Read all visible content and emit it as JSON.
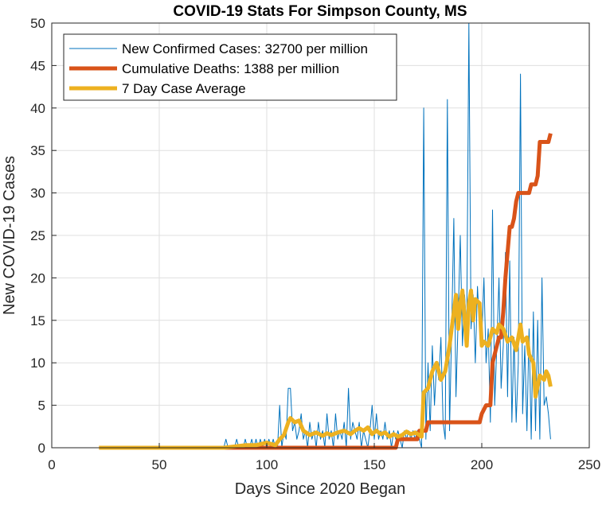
{
  "chart_data": {
    "type": "line",
    "title": "COVID-19 Stats For Simpson County, MS",
    "xlabel": "Days Since 2020 Began",
    "ylabel": "New COVID-19 Cases",
    "xlim": [
      0,
      250
    ],
    "ylim": [
      0,
      50
    ],
    "xticks": [
      0,
      50,
      100,
      150,
      200,
      250
    ],
    "yticks": [
      0,
      5,
      10,
      15,
      20,
      25,
      30,
      35,
      40,
      45,
      50
    ],
    "grid": true,
    "legend_position": "top-left",
    "series": [
      {
        "name": "New Confirmed Cases: 32700 per million",
        "color": "#0072BD",
        "line_width": "thin",
        "points": [
          [
            22,
            0
          ],
          [
            80,
            0
          ],
          [
            81,
            1
          ],
          [
            82,
            0
          ],
          [
            85,
            0
          ],
          [
            86,
            1
          ],
          [
            87,
            0
          ],
          [
            89,
            0
          ],
          [
            90,
            1
          ],
          [
            91,
            0
          ],
          [
            92,
            0
          ],
          [
            93,
            1
          ],
          [
            94,
            0
          ],
          [
            95,
            1
          ],
          [
            96,
            0
          ],
          [
            97,
            1
          ],
          [
            98,
            0
          ],
          [
            99,
            1
          ],
          [
            100,
            0
          ],
          [
            101,
            1
          ],
          [
            102,
            0
          ],
          [
            103,
            1
          ],
          [
            104,
            0
          ],
          [
            105,
            0
          ],
          [
            106,
            5
          ],
          [
            107,
            0
          ],
          [
            108,
            2
          ],
          [
            109,
            1
          ],
          [
            110,
            7
          ],
          [
            111,
            7
          ],
          [
            112,
            2
          ],
          [
            113,
            3
          ],
          [
            114,
            1
          ],
          [
            115,
            2
          ],
          [
            116,
            4
          ],
          [
            117,
            1
          ],
          [
            118,
            2
          ],
          [
            119,
            0
          ],
          [
            120,
            3
          ],
          [
            121,
            1
          ],
          [
            122,
            2
          ],
          [
            123,
            0
          ],
          [
            124,
            3
          ],
          [
            125,
            1
          ],
          [
            126,
            2
          ],
          [
            127,
            0
          ],
          [
            128,
            4
          ],
          [
            129,
            1
          ],
          [
            130,
            2
          ],
          [
            131,
            0
          ],
          [
            132,
            4
          ],
          [
            133,
            1
          ],
          [
            134,
            2
          ],
          [
            135,
            1
          ],
          [
            136,
            3
          ],
          [
            137,
            0
          ],
          [
            138,
            7
          ],
          [
            139,
            1
          ],
          [
            140,
            3
          ],
          [
            141,
            2
          ],
          [
            142,
            1
          ],
          [
            143,
            3
          ],
          [
            144,
            0
          ],
          [
            145,
            2
          ],
          [
            146,
            1
          ],
          [
            147,
            0
          ],
          [
            148,
            2
          ],
          [
            149,
            5
          ],
          [
            150,
            1
          ],
          [
            151,
            4
          ],
          [
            152,
            1
          ],
          [
            153,
            2
          ],
          [
            154,
            1
          ],
          [
            155,
            3
          ],
          [
            156,
            1
          ],
          [
            157,
            2
          ],
          [
            158,
            0
          ],
          [
            159,
            2
          ],
          [
            160,
            1
          ],
          [
            161,
            2
          ],
          [
            162,
            1
          ],
          [
            163,
            0
          ],
          [
            164,
            2
          ],
          [
            165,
            1
          ],
          [
            166,
            2
          ],
          [
            167,
            1
          ],
          [
            168,
            2
          ],
          [
            169,
            1
          ],
          [
            170,
            2
          ],
          [
            171,
            1
          ],
          [
            172,
            0
          ],
          [
            173,
            40
          ],
          [
            174,
            1
          ],
          [
            175,
            10
          ],
          [
            176,
            2
          ],
          [
            177,
            12
          ],
          [
            178,
            5
          ],
          [
            179,
            10
          ],
          [
            180,
            8
          ],
          [
            181,
            13
          ],
          [
            182,
            3
          ],
          [
            183,
            1
          ],
          [
            184,
            41
          ],
          [
            185,
            2
          ],
          [
            186,
            14
          ],
          [
            187,
            27
          ],
          [
            188,
            6
          ],
          [
            189,
            15
          ],
          [
            190,
            25
          ],
          [
            191,
            12
          ],
          [
            192,
            18
          ],
          [
            193,
            14
          ],
          [
            194,
            50
          ],
          [
            195,
            14
          ],
          [
            196,
            18
          ],
          [
            197,
            10
          ],
          [
            198,
            19
          ],
          [
            199,
            14
          ],
          [
            200,
            13
          ],
          [
            201,
            20
          ],
          [
            202,
            10
          ],
          [
            203,
            14
          ],
          [
            204,
            3
          ],
          [
            205,
            28
          ],
          [
            206,
            5
          ],
          [
            207,
            12
          ],
          [
            208,
            20
          ],
          [
            209,
            7
          ],
          [
            210,
            12
          ],
          [
            211,
            23
          ],
          [
            212,
            6
          ],
          [
            213,
            22
          ],
          [
            214,
            3
          ],
          [
            215,
            13
          ],
          [
            216,
            3
          ],
          [
            217,
            10
          ],
          [
            218,
            44
          ],
          [
            219,
            4
          ],
          [
            220,
            12
          ],
          [
            221,
            2
          ],
          [
            222,
            14
          ],
          [
            223,
            1
          ],
          [
            224,
            16
          ],
          [
            225,
            2
          ],
          [
            226,
            15
          ],
          [
            227,
            1
          ],
          [
            228,
            20
          ],
          [
            229,
            5
          ],
          [
            230,
            6
          ],
          [
            231,
            4
          ],
          [
            232,
            1
          ]
        ]
      },
      {
        "name": "Cumulative Deaths: 1388 per million",
        "color": "#D95319",
        "line_width": "thick",
        "points": [
          [
            22,
            0
          ],
          [
            160,
            0
          ],
          [
            161,
            1
          ],
          [
            170,
            1
          ],
          [
            171,
            2
          ],
          [
            174,
            2
          ],
          [
            175,
            3
          ],
          [
            199,
            3
          ],
          [
            200,
            4
          ],
          [
            202,
            5
          ],
          [
            204,
            5
          ],
          [
            205,
            10
          ],
          [
            207,
            12
          ],
          [
            208,
            13
          ],
          [
            209,
            13
          ],
          [
            210,
            16
          ],
          [
            211,
            20
          ],
          [
            213,
            26
          ],
          [
            214,
            26
          ],
          [
            215,
            27
          ],
          [
            216,
            29
          ],
          [
            217,
            30
          ],
          [
            222,
            30
          ],
          [
            223,
            31
          ],
          [
            225,
            31
          ],
          [
            226,
            32
          ],
          [
            227,
            36
          ],
          [
            231,
            36
          ],
          [
            232,
            37
          ]
        ]
      },
      {
        "name": "7 Day Case Average",
        "color": "#EDB120",
        "line_width": "thick",
        "points": [
          [
            22,
            0
          ],
          [
            80,
            0
          ],
          [
            90,
            0.3
          ],
          [
            95,
            0.3
          ],
          [
            100,
            0.6
          ],
          [
            104,
            0.3
          ],
          [
            106,
            1
          ],
          [
            108,
            1.5
          ],
          [
            110,
            3
          ],
          [
            111,
            3.5
          ],
          [
            113,
            3
          ],
          [
            115,
            3.2
          ],
          [
            117,
            2
          ],
          [
            120,
            1.5
          ],
          [
            123,
            1.8
          ],
          [
            126,
            1.4
          ],
          [
            128,
            1.7
          ],
          [
            130,
            1.5
          ],
          [
            133,
            1.8
          ],
          [
            136,
            2
          ],
          [
            139,
            1.6
          ],
          [
            141,
            2
          ],
          [
            143,
            2.3
          ],
          [
            145,
            2
          ],
          [
            147,
            2.4
          ],
          [
            149,
            1.6
          ],
          [
            151,
            2
          ],
          [
            153,
            1.6
          ],
          [
            155,
            1.8
          ],
          [
            157,
            1.3
          ],
          [
            159,
            1.6
          ],
          [
            161,
            1.3
          ],
          [
            163,
            1.5
          ],
          [
            165,
            1.9
          ],
          [
            167,
            1.6
          ],
          [
            169,
            1.8
          ],
          [
            171,
            1.5
          ],
          [
            172,
            1.3
          ],
          [
            173,
            6.5
          ],
          [
            175,
            7
          ],
          [
            177,
            9
          ],
          [
            179,
            10
          ],
          [
            181,
            8
          ],
          [
            183,
            9
          ],
          [
            185,
            12
          ],
          [
            187,
            16
          ],
          [
            188,
            18
          ],
          [
            189,
            14
          ],
          [
            190,
            17
          ],
          [
            191,
            18.5
          ],
          [
            193,
            12
          ],
          [
            194,
            17
          ],
          [
            195,
            18.5
          ],
          [
            196,
            15
          ],
          [
            197,
            17.5
          ],
          [
            199,
            17
          ],
          [
            200,
            12
          ],
          [
            201,
            12.5
          ],
          [
            203,
            12
          ],
          [
            205,
            14
          ],
          [
            207,
            13.5
          ],
          [
            208,
            14.5
          ],
          [
            210,
            14
          ],
          [
            212,
            12.5
          ],
          [
            214,
            13
          ],
          [
            216,
            11.5
          ],
          [
            218,
            14.5
          ],
          [
            219,
            12.5
          ],
          [
            221,
            13
          ],
          [
            222,
            11
          ],
          [
            224,
            10
          ],
          [
            225,
            6
          ],
          [
            227,
            8.5
          ],
          [
            229,
            8
          ],
          [
            230,
            9
          ],
          [
            231,
            8.5
          ],
          [
            232,
            7.2
          ]
        ]
      }
    ]
  }
}
